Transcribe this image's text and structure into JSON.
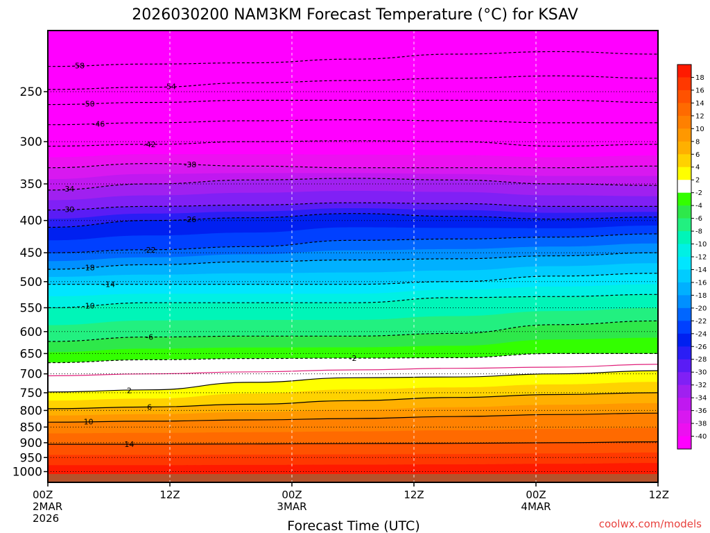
{
  "chart_data": {
    "type": "heatmap",
    "title": "2026030200 NAM3KM Forecast Temperature (°C) for KSAV",
    "xlabel": "Forecast Time (UTC)",
    "ylabel": "",
    "x_ticks": [
      {
        "hour": 0,
        "lines": [
          "00Z",
          "2MAR",
          "2026"
        ]
      },
      {
        "hour": 12,
        "lines": [
          "12Z"
        ]
      },
      {
        "hour": 24,
        "lines": [
          "00Z",
          "3MAR"
        ]
      },
      {
        "hour": 36,
        "lines": [
          "12Z"
        ]
      },
      {
        "hour": 48,
        "lines": [
          "00Z",
          "4MAR"
        ]
      },
      {
        "hour": 60,
        "lines": [
          "12Z"
        ]
      }
    ],
    "xlim": [
      0,
      60
    ],
    "y_ticks": [
      250,
      300,
      350,
      400,
      450,
      500,
      550,
      600,
      650,
      700,
      750,
      800,
      850,
      900,
      950,
      1000
    ],
    "ylim": [
      200,
      1040
    ],
    "y_axis_pressure": true,
    "colorbar": {
      "labels": [
        18,
        16,
        14,
        12,
        10,
        8,
        6,
        4,
        2,
        -2,
        -4,
        -6,
        -8,
        -10,
        -12,
        -14,
        -16,
        -18,
        -20,
        -22,
        -24,
        -26,
        -28,
        -30,
        -32,
        -34,
        -36,
        -38,
        -40
      ],
      "bands": [
        {
          "lo": 18,
          "hi": 20,
          "color": "#ff1a00"
        },
        {
          "lo": 16,
          "hi": 18,
          "color": "#ff3800"
        },
        {
          "lo": 14,
          "hi": 16,
          "color": "#ff5200"
        },
        {
          "lo": 12,
          "hi": 14,
          "color": "#ff6a00"
        },
        {
          "lo": 10,
          "hi": 12,
          "color": "#ff8000"
        },
        {
          "lo": 8,
          "hi": 10,
          "color": "#ff9800"
        },
        {
          "lo": 6,
          "hi": 8,
          "color": "#ffb000"
        },
        {
          "lo": 4,
          "hi": 6,
          "color": "#ffd200"
        },
        {
          "lo": 2,
          "hi": 4,
          "color": "#ffff00"
        },
        {
          "lo": -2,
          "hi": 2,
          "color": "#ffffff"
        },
        {
          "lo": -4,
          "hi": -2,
          "color": "#33ff00"
        },
        {
          "lo": -6,
          "hi": -4,
          "color": "#2ee84a"
        },
        {
          "lo": -8,
          "hi": -6,
          "color": "#22f080"
        },
        {
          "lo": -10,
          "hi": -8,
          "color": "#00f5b8"
        },
        {
          "lo": -12,
          "hi": -10,
          "color": "#00f0e4"
        },
        {
          "lo": -14,
          "hi": -12,
          "color": "#00e6ff"
        },
        {
          "lo": -16,
          "hi": -14,
          "color": "#00ccff"
        },
        {
          "lo": -18,
          "hi": -16,
          "color": "#00b0ff"
        },
        {
          "lo": -20,
          "hi": -18,
          "color": "#0090ff"
        },
        {
          "lo": -22,
          "hi": -20,
          "color": "#0066ff"
        },
        {
          "lo": -24,
          "hi": -22,
          "color": "#0040ff"
        },
        {
          "lo": -26,
          "hi": -24,
          "color": "#0020f0"
        },
        {
          "lo": -28,
          "hi": -26,
          "color": "#2a1ef5"
        },
        {
          "lo": -30,
          "hi": -28,
          "color": "#5a1cf5"
        },
        {
          "lo": -32,
          "hi": -30,
          "color": "#8020f5"
        },
        {
          "lo": -34,
          "hi": -32,
          "color": "#a020f0"
        },
        {
          "lo": -36,
          "hi": -34,
          "color": "#c018f0"
        },
        {
          "lo": -38,
          "hi": -36,
          "color": "#d818f0"
        },
        {
          "lo": -40,
          "hi": -38,
          "color": "#ec10f0"
        },
        {
          "lo": -60,
          "hi": -40,
          "color": "#ff00ff"
        }
      ]
    },
    "contours": [
      {
        "value": 14,
        "dashed": false,
        "p": [
          905,
          905,
          904,
          903,
          902,
          900,
          897
        ],
        "label_x": 8
      },
      {
        "value": 10,
        "dashed": false,
        "p": [
          835,
          832,
          828,
          824,
          818,
          812,
          808
        ],
        "label_x": 4
      },
      {
        "value": 6,
        "dashed": false,
        "p": [
          795,
          790,
          782,
          772,
          763,
          755,
          750
        ],
        "label_x": 10
      },
      {
        "value": 2,
        "dashed": false,
        "p": [
          748,
          742,
          722,
          710,
          708,
          700,
          692
        ],
        "label_x": 8
      },
      {
        "value": 0,
        "dashed": false,
        "color": "#e0207a",
        "p": [
          705,
          700,
          695,
          690,
          686,
          683,
          676
        ]
      },
      {
        "value": -2,
        "dashed": true,
        "p": [
          672,
          665,
          662,
          661,
          660,
          650,
          650
        ],
        "label_x": 30
      },
      {
        "value": -6,
        "dashed": true,
        "p": [
          622,
          612,
          610,
          610,
          604,
          585,
          577
        ],
        "label_x": 10
      },
      {
        "value": -10,
        "dashed": true,
        "p": [
          550,
          540,
          540,
          540,
          530,
          528,
          524
        ],
        "label_x": 4
      },
      {
        "value": -14,
        "dashed": true,
        "p": [
          505,
          505,
          505,
          505,
          500,
          490,
          485
        ],
        "label_x": 6
      },
      {
        "value": -18,
        "dashed": true,
        "p": [
          478,
          470,
          465,
          462,
          460,
          455,
          450
        ],
        "label_x": 4
      },
      {
        "value": -22,
        "dashed": true,
        "p": [
          450,
          445,
          440,
          430,
          428,
          425,
          420
        ],
        "label_x": 10
      },
      {
        "value": -26,
        "dashed": true,
        "p": [
          410,
          400,
          396,
          390,
          394,
          398,
          395
        ],
        "label_x": 14
      },
      {
        "value": -30,
        "dashed": true,
        "p": [
          385,
          380,
          378,
          375,
          376,
          380,
          380
        ],
        "label_x": 2
      },
      {
        "value": -34,
        "dashed": true,
        "p": [
          358,
          350,
          345,
          343,
          345,
          350,
          352
        ],
        "label_x": 2
      },
      {
        "value": -38,
        "dashed": true,
        "p": [
          330,
          325,
          328,
          330,
          330,
          330,
          328
        ],
        "label_x": 14
      },
      {
        "value": -42,
        "dashed": true,
        "p": [
          305,
          303,
          300,
          299,
          300,
          305,
          303
        ],
        "label_x": 10
      },
      {
        "value": -46,
        "dashed": true,
        "p": [
          282,
          280,
          278,
          277,
          278,
          280,
          280
        ],
        "label_x": 5
      },
      {
        "value": -50,
        "dashed": true,
        "p": [
          262,
          260,
          258,
          258,
          258,
          258,
          260
        ],
        "label_x": 4
      },
      {
        "value": -54,
        "dashed": true,
        "p": [
          248,
          246,
          242,
          240,
          238,
          236,
          238
        ],
        "label_x": 12
      },
      {
        "value": -58,
        "dashed": true,
        "p": [
          228,
          226,
          225,
          222,
          218,
          216,
          218
        ],
        "label_x": 3
      }
    ],
    "surface_color": "#b5522b",
    "grid": true
  },
  "credit": "coolwx.com/models"
}
